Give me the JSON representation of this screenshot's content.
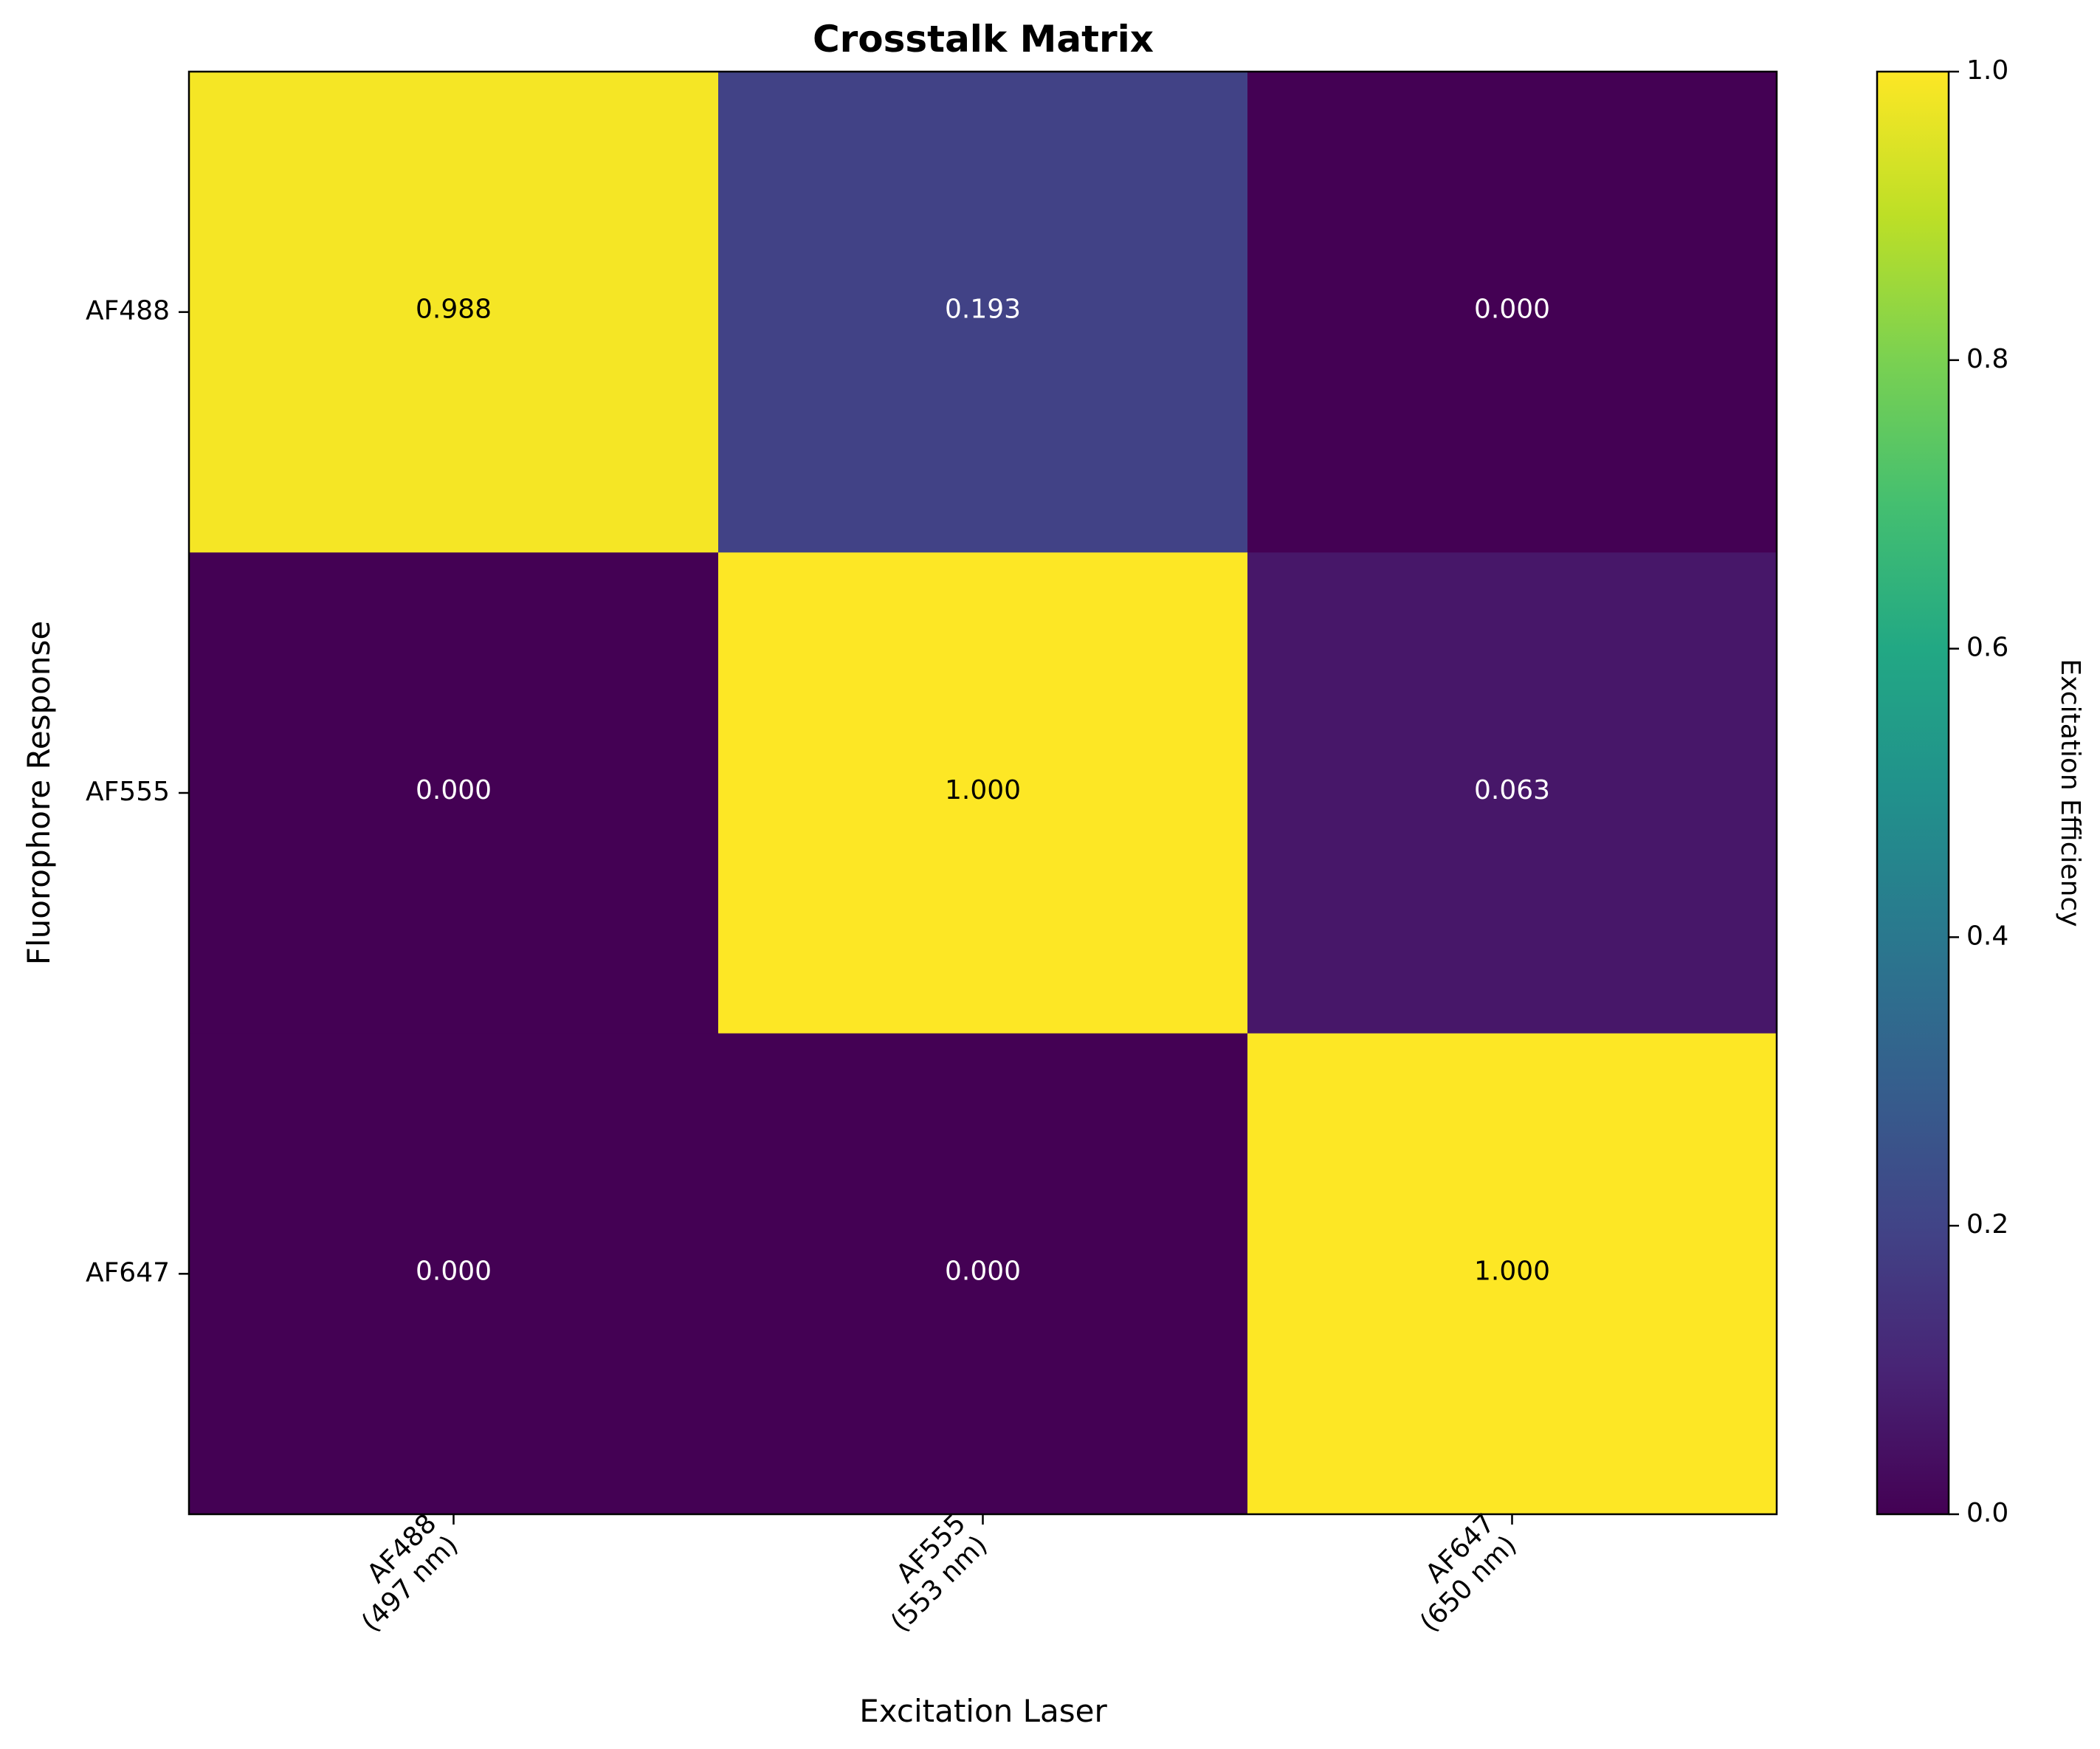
{
  "chart_data": {
    "type": "heatmap",
    "title": "Crosstalk Matrix",
    "xlabel": "Excitation Laser",
    "ylabel": "Fluorophore Response",
    "x_categories": [
      [
        "AF488",
        "(497 nm)"
      ],
      [
        "AF555",
        "(553 nm)"
      ],
      [
        "AF647",
        "(650 nm)"
      ]
    ],
    "y_categories": [
      "AF488",
      "AF555",
      "AF647"
    ],
    "values": [
      [
        0.988,
        0.193,
        0.0
      ],
      [
        0.0,
        1.0,
        0.063
      ],
      [
        0.0,
        0.0,
        1.0
      ]
    ],
    "value_labels": [
      [
        "0.988",
        "0.193",
        "0.000"
      ],
      [
        "0.000",
        "1.000",
        "0.063"
      ],
      [
        "0.000",
        "0.000",
        "1.000"
      ]
    ],
    "colormap": "viridis",
    "vmin": 0.0,
    "vmax": 1.0,
    "colorbar": {
      "label": "Excitation Efficiency",
      "ticks": [
        "0.0",
        "0.2",
        "0.4",
        "0.6",
        "0.8",
        "1.0"
      ],
      "tick_values": [
        0.0,
        0.2,
        0.4,
        0.6,
        0.8,
        1.0
      ]
    },
    "grid": false
  }
}
